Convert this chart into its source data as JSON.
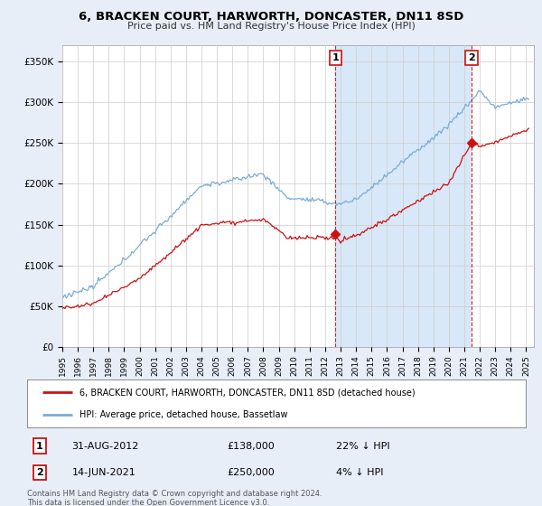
{
  "title": "6, BRACKEN COURT, HARWORTH, DONCASTER, DN11 8SD",
  "subtitle": "Price paid vs. HM Land Registry's House Price Index (HPI)",
  "ylabel_ticks": [
    "£0",
    "£50K",
    "£100K",
    "£150K",
    "£200K",
    "£250K",
    "£300K",
    "£350K"
  ],
  "ytick_values": [
    0,
    50000,
    100000,
    150000,
    200000,
    250000,
    300000,
    350000
  ],
  "ylim": [
    0,
    370000
  ],
  "xlim_start": 1995.0,
  "xlim_end": 2025.5,
  "hpi_color": "#7aadd4",
  "price_color": "#cc1111",
  "marker1_date": 2012.67,
  "marker1_price": 138000,
  "marker2_date": 2021.46,
  "marker2_price": 250000,
  "transaction1_date_str": "31-AUG-2012",
  "transaction1_price_str": "£138,000",
  "transaction1_hpi_str": "22% ↓ HPI",
  "transaction2_date_str": "14-JUN-2021",
  "transaction2_price_str": "£250,000",
  "transaction2_hpi_str": "4% ↓ HPI",
  "legend_line1": "6, BRACKEN COURT, HARWORTH, DONCASTER, DN11 8SD (detached house)",
  "legend_line2": "HPI: Average price, detached house, Bassetlaw",
  "footnote": "Contains HM Land Registry data © Crown copyright and database right 2024.\nThis data is licensed under the Open Government Licence v3.0.",
  "background_color": "#e8eef8",
  "plot_bg_color": "#ffffff",
  "shade_color": "#d8e8f8",
  "grid_color": "#cccccc",
  "box_border_color": "#cc1111"
}
